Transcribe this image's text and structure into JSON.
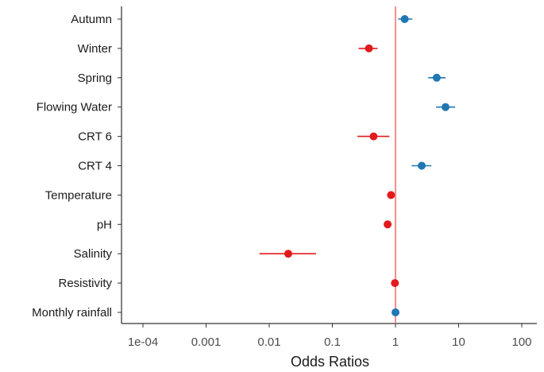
{
  "chart_data": {
    "type": "scatter",
    "subtype": "forest-plot",
    "xlabel": "Odds Ratios",
    "ylabel": "",
    "title": "",
    "x_scale": "log",
    "xlim": [
      0.0001,
      100
    ],
    "x_ticks": [
      0.0001,
      0.001,
      0.01,
      0.1,
      1,
      10,
      100
    ],
    "x_tick_labels": [
      "1e-04",
      "0.001",
      "0.01",
      "0.1",
      "1",
      "10",
      "100"
    ],
    "reference_line": 1,
    "grid": false,
    "colors": {
      "increase": "#1f77b4",
      "decrease": "#e31a1c",
      "reference": "#f26b6b"
    },
    "categories": [
      "Autumn",
      "Winter",
      "Spring",
      "Flowing Water",
      "CRT 6",
      "CRT 4",
      "Temperature",
      "pH",
      "Salinity",
      "Resistivity",
      "Monthly rainfall"
    ],
    "points": [
      {
        "label": "Autumn",
        "or": 1.4,
        "lower": 1.1,
        "upper": 1.85,
        "color": "#1f77b4"
      },
      {
        "label": "Winter",
        "or": 0.38,
        "lower": 0.26,
        "upper": 0.52,
        "color": "#e31a1c"
      },
      {
        "label": "Spring",
        "or": 4.5,
        "lower": 3.3,
        "upper": 6.2,
        "color": "#1f77b4"
      },
      {
        "label": "Flowing Water",
        "or": 6.2,
        "lower": 4.4,
        "upper": 8.8,
        "color": "#1f77b4"
      },
      {
        "label": "CRT 6",
        "or": 0.45,
        "lower": 0.25,
        "upper": 0.8,
        "color": "#e31a1c"
      },
      {
        "label": "CRT 4",
        "or": 2.6,
        "lower": 1.8,
        "upper": 3.7,
        "color": "#1f77b4"
      },
      {
        "label": "Temperature",
        "or": 0.85,
        "lower": 0.78,
        "upper": 0.92,
        "color": "#e31a1c"
      },
      {
        "label": "pH",
        "or": 0.75,
        "lower": 0.68,
        "upper": 0.82,
        "color": "#e31a1c"
      },
      {
        "label": "Salinity",
        "or": 0.02,
        "lower": 0.007,
        "upper": 0.055,
        "color": "#e31a1c"
      },
      {
        "label": "Resistivity",
        "or": 0.98,
        "lower": 0.95,
        "upper": 1.02,
        "color": "#e31a1c"
      },
      {
        "label": "Monthly rainfall",
        "or": 1.0,
        "lower": 0.98,
        "upper": 1.03,
        "color": "#1f77b4"
      }
    ]
  }
}
